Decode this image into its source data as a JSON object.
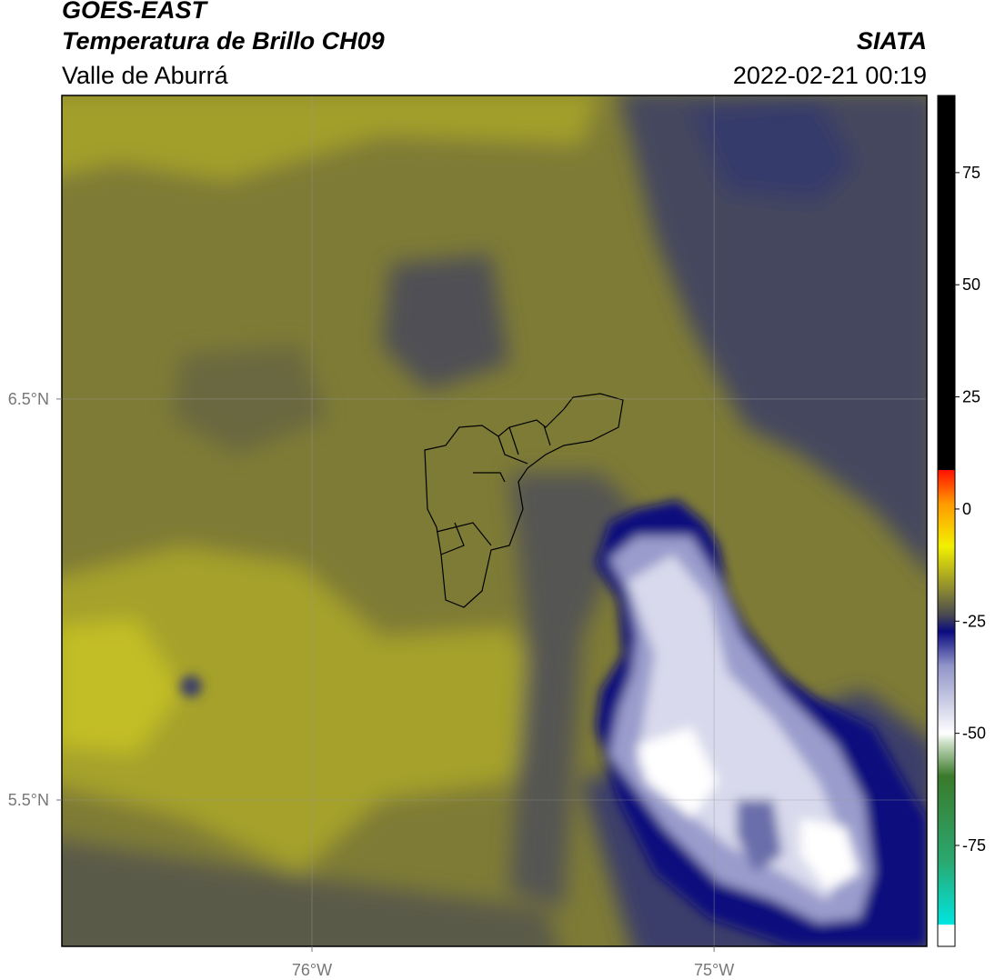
{
  "header": {
    "satellite": "GOES-EAST",
    "product": "Temperatura de Brillo CH09",
    "region": "Valle de Aburrá",
    "agency": "SIATA",
    "datetime": "2022-02-21 00:19"
  },
  "map": {
    "xlim": [
      -76.622,
      -74.471
    ],
    "ylim": [
      5.135,
      7.257
    ],
    "xticks": [
      {
        "value": -76,
        "label": "76°W"
      },
      {
        "value": -75,
        "label": "75°W"
      }
    ],
    "yticks": [
      {
        "value": 6.5,
        "label": "6.5°N"
      },
      {
        "value": 5.5,
        "label": "5.5°N"
      }
    ],
    "grid": true
  },
  "colorbar": {
    "lim": [
      -97.5,
      92.2
    ],
    "ticks": [
      75,
      50,
      25,
      0,
      -25,
      -50,
      -75
    ]
  }
}
